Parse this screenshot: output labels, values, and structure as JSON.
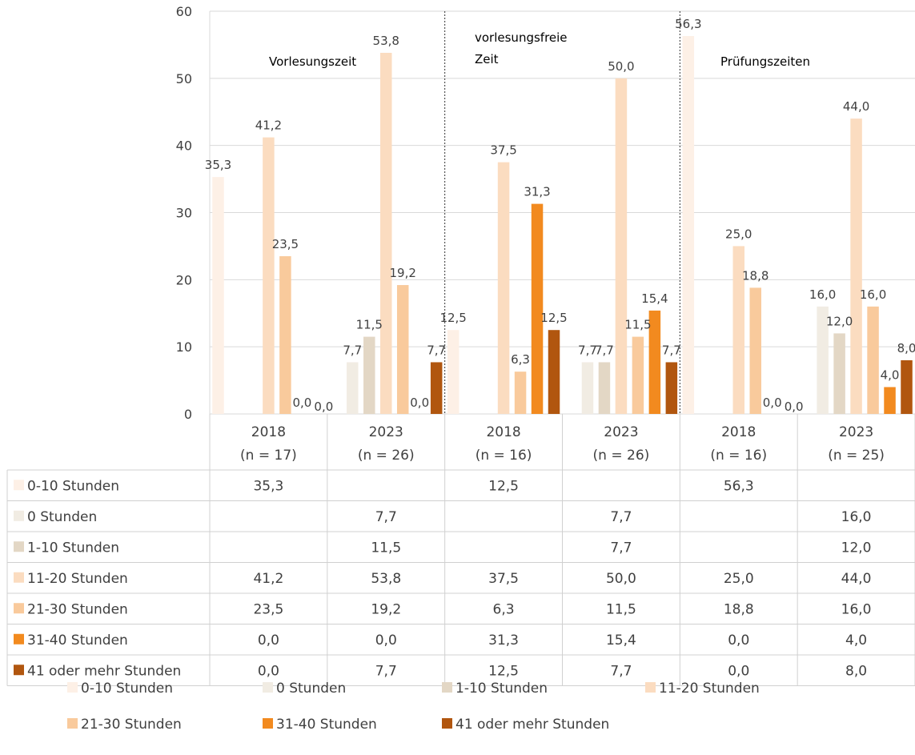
{
  "chart_data": {
    "type": "bar",
    "ylim": [
      0,
      60
    ],
    "yticks": [
      0,
      10,
      20,
      30,
      40,
      50,
      60
    ],
    "grid": true,
    "legend_placement": "bottom",
    "groups": [
      {
        "label": "Vorlesungszeit",
        "label_lines": [
          "Vorlesungszeit"
        ]
      },
      {
        "label": "vorlesungsfreie Zeit",
        "label_lines": [
          "vorlesungsfreie",
          "Zeit"
        ]
      },
      {
        "label": "Prüfungszeiten",
        "label_lines": [
          "Prüfungszeiten"
        ]
      }
    ],
    "categories": [
      {
        "year": "2018",
        "n": "(n = 17)",
        "group": 0
      },
      {
        "year": "2023",
        "n": "(n = 26)",
        "group": 0
      },
      {
        "year": "2018",
        "n": "(n = 16)",
        "group": 1
      },
      {
        "year": "2023",
        "n": "(n = 26)",
        "group": 1
      },
      {
        "year": "2018",
        "n": "(n = 16)",
        "group": 2
      },
      {
        "year": "2023",
        "n": "(n = 25)",
        "group": 2
      }
    ],
    "series": [
      {
        "name": "0-10 Stunden",
        "color": "#FDF0E6",
        "values": [
          35.3,
          null,
          12.5,
          null,
          56.3,
          null
        ],
        "labels": [
          "35,3",
          "",
          "12,5",
          "",
          "56,3",
          ""
        ]
      },
      {
        "name": "0 Stunden",
        "color": "#F1ECE3",
        "values": [
          null,
          7.7,
          null,
          7.7,
          null,
          16.0
        ],
        "labels": [
          "",
          "7,7",
          "",
          "7,7",
          "",
          "16,0"
        ]
      },
      {
        "name": "1-10 Stunden",
        "color": "#E3D7C5",
        "values": [
          null,
          11.5,
          null,
          7.7,
          null,
          12.0
        ],
        "labels": [
          "",
          "11,5",
          "",
          "7,7",
          "",
          "12,0"
        ]
      },
      {
        "name": "11-20 Stunden",
        "color": "#FBDCC0",
        "values": [
          41.2,
          53.8,
          37.5,
          50.0,
          25.0,
          44.0
        ],
        "labels": [
          "41,2",
          "53,8",
          "37,5",
          "50,0",
          "25,0",
          "44,0"
        ]
      },
      {
        "name": "21-30 Stunden",
        "color": "#F9CA9C",
        "values": [
          23.5,
          19.2,
          6.3,
          11.5,
          18.8,
          16.0
        ],
        "labels": [
          "23,5",
          "19,2",
          "6,3",
          "11,5",
          "18,8",
          "16,0"
        ]
      },
      {
        "name": "31-40 Stunden",
        "color": "#F28A1F",
        "values": [
          0.0,
          0.0,
          31.3,
          15.4,
          0.0,
          4.0
        ],
        "labels": [
          "0,0",
          "0,0",
          "31,3",
          "15,4",
          "0,0",
          "4,0"
        ]
      },
      {
        "name": "41 oder mehr Stunden",
        "color": "#B1560F",
        "values": [
          0.0,
          7.7,
          12.5,
          7.7,
          0.0,
          8.0
        ],
        "labels": [
          "0,0",
          "7,7",
          "12,5",
          "7,7",
          "0,0",
          "8,0"
        ]
      }
    ]
  }
}
